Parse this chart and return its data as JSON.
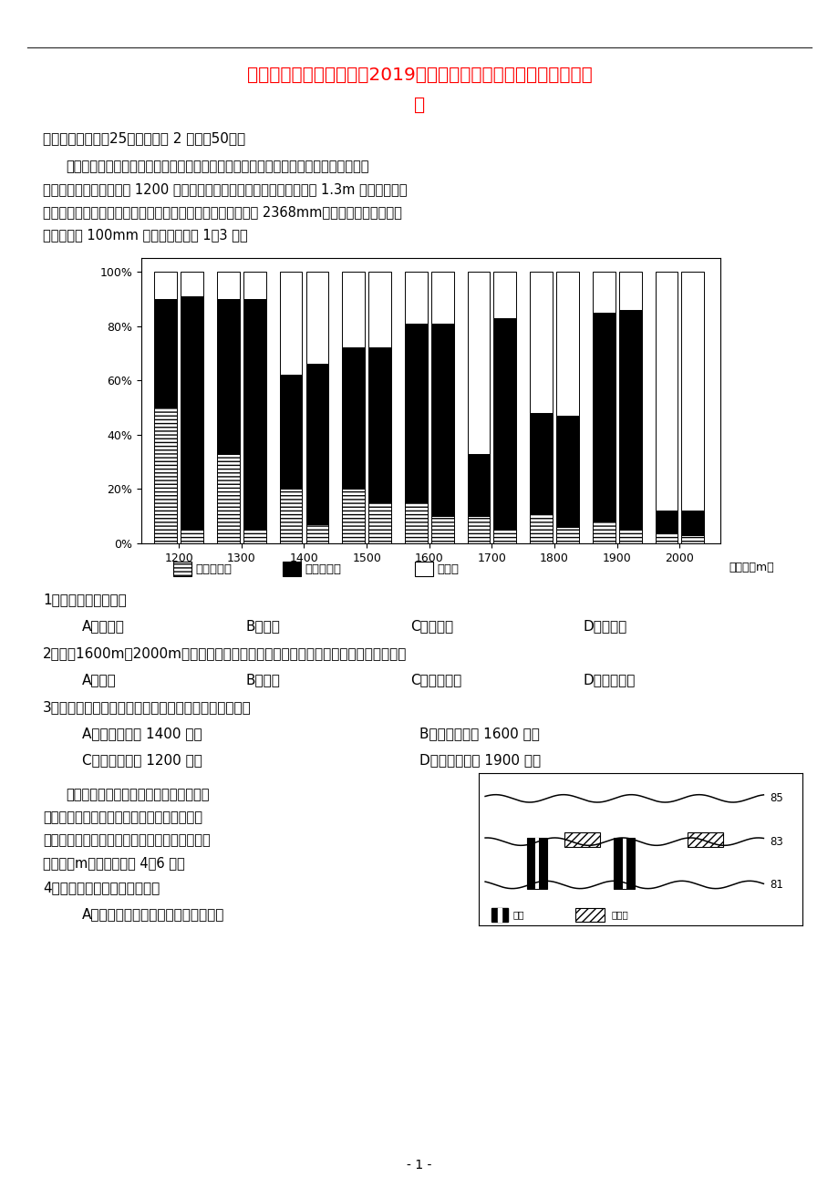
{
  "title_line1": "吉林省吉林大学附属中学2019届高三地理上学期第四次模拟考试试",
  "title_line2": "题",
  "section_title": "一、单项选择题（25题，每小题 2 分，共50分）",
  "para1": "下图为我国东部季风区某山峰及附近地区东南坡和西北坡（同一海拔左侧柱状图为西北",
  "para2": "坡，右侧为东南坡）海拔 1200 米以上三种主要乔木胸高断面积（树木距 1.3m 的位置的断面",
  "para3": "的面积）之和所占比例沿海拔梯度的变化，该山年均降水量为 2368mm，同一海拔东南坡比西",
  "para4": "北坡降水多 100mm 左右，据此完成 1～3 题。",
  "altitudes": [
    1200,
    1300,
    1400,
    1500,
    1600,
    1700,
    1800,
    1900,
    2000
  ],
  "west_deciduous": [
    50,
    33,
    20,
    20,
    15,
    10,
    11,
    8,
    4
  ],
  "west_evergreen": [
    40,
    57,
    42,
    52,
    66,
    23,
    37,
    77,
    8
  ],
  "west_conifer": [
    10,
    10,
    38,
    28,
    19,
    67,
    52,
    15,
    88
  ],
  "east_deciduous": [
    5,
    5,
    7,
    15,
    10,
    5,
    6,
    5,
    3
  ],
  "east_evergreen": [
    86,
    85,
    59,
    57,
    71,
    78,
    41,
    81,
    9
  ],
  "east_conifer": [
    9,
    10,
    34,
    28,
    19,
    17,
    53,
    14,
    88
  ],
  "xlabel": "（海拔：m）",
  "legend_labels": [
    "落叶阔叶林",
    "常绿阔叶林",
    "针叶林"
  ],
  "q1_text": "1．该山峰最可能位于",
  "q1_a": "A．太行山",
  "q1_b": "B．秦岭",
  "q1_c": "C．武夷山",
  "q1_d": "D．大别山",
  "q2_text": "2．海拔1600m～2000m西北坡和东南坡常绿阔叶林所占比重差异的最主要影响因素是",
  "q2_a": "A．热量",
  "q2_b": "B．降水",
  "q2_c": "C．土壤水分",
  "q2_d": "D．地势起伏",
  "q3_text": "3．下列坡向和海拔的组合，乔木物种最丰富的最可能是",
  "q3_a": "A．东南坡海拔 1400 米处",
  "q3_b": "B．西北坡海拔 1600 米处",
  "q3_c": "C．西北坡海拔 1200 米处",
  "q3_d": "D．东南坡海拔 1900 米处",
  "p2_1": "地下水位过高导致会土壤过湿，不利于农",
  "p2_2": "业生产，需要排水。下图示意某地等潜水位线",
  "p2_3": "及拟建的排水井和排水沟的位置（图中等潜水位",
  "p2_4": "线单位：m）。据此回答 4～6 题。",
  "q4_text": "4．土壤过湿对农作物的危害是",
  "q4_a": "A．气温日较差小，不利营养物质积累",
  "page_num": "- 1 -",
  "background_color": "#ffffff"
}
